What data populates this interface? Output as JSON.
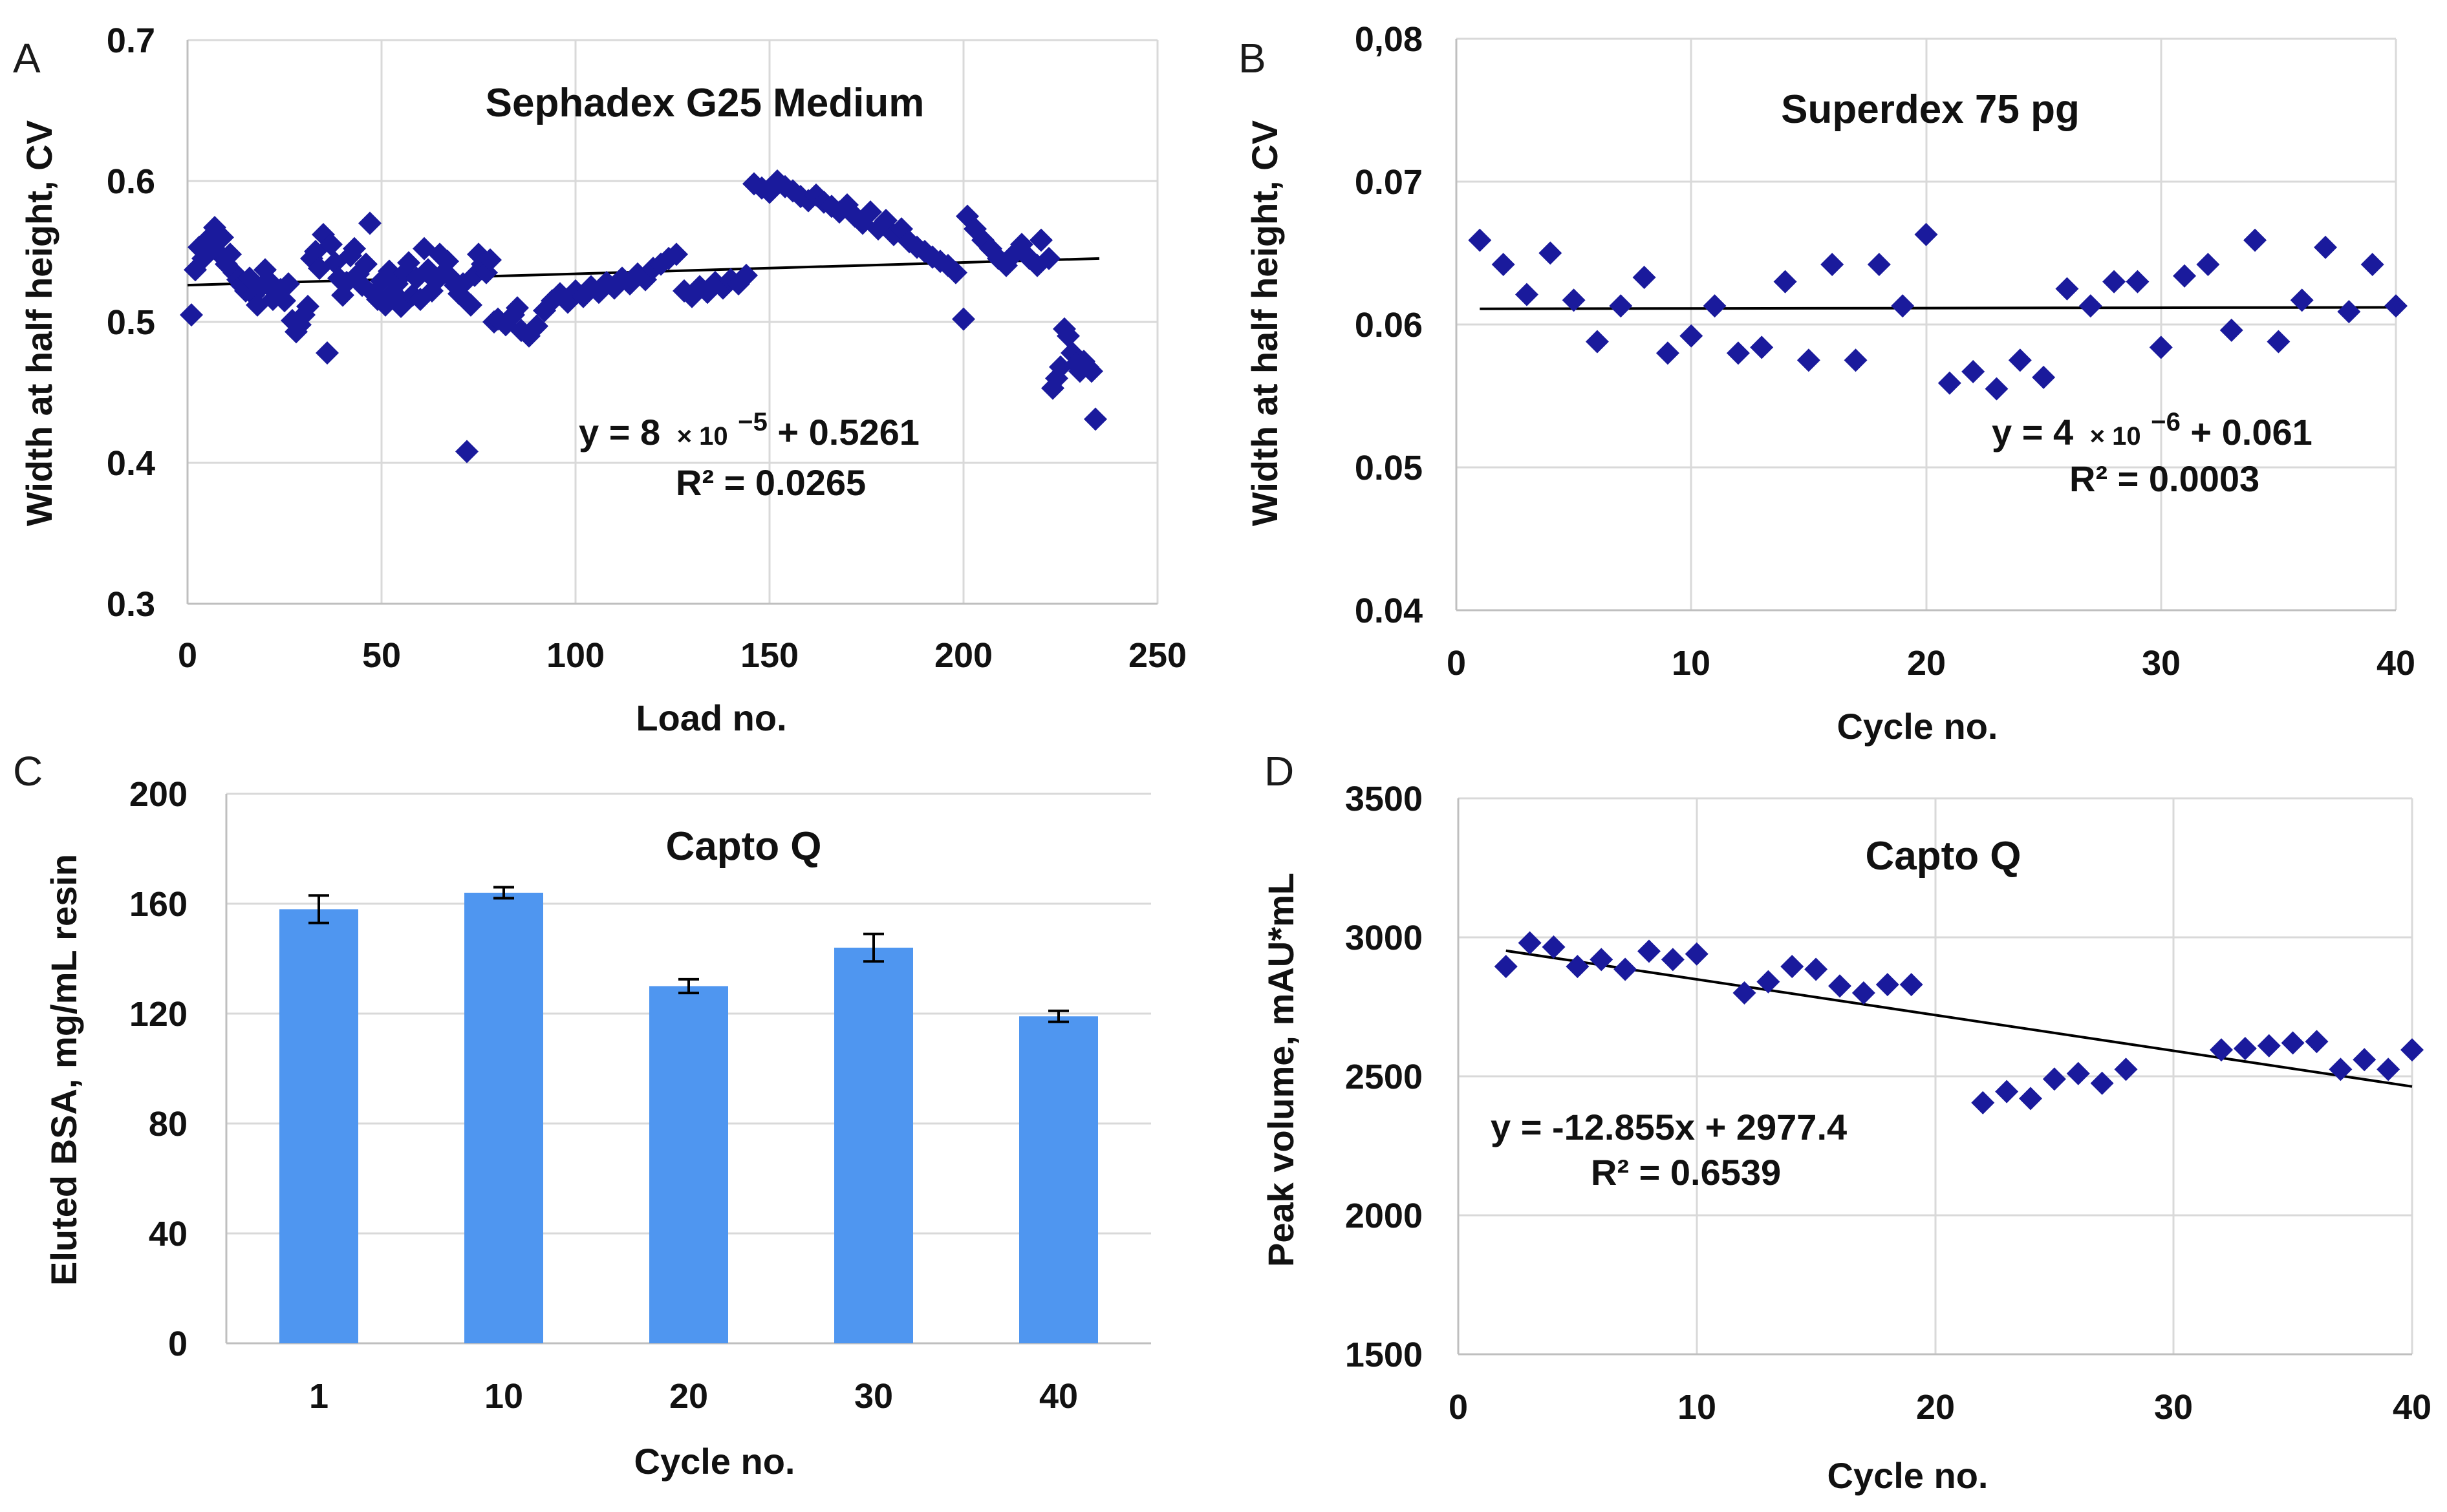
{
  "colors": {
    "marker": "#1a1a9c",
    "bar": "#4f96f0",
    "trend": "#000000",
    "grid": "#d9d9d9"
  },
  "chart_data": [
    {
      "panel": "A",
      "type": "scatter",
      "title": "Sephadex G25 Medium",
      "xlabel": "Load no.",
      "ylabel": "Width at half height, CV",
      "xlim": [
        0,
        250
      ],
      "ylim": [
        0.3,
        0.7
      ],
      "xticks": [
        "0",
        "50",
        "100",
        "150",
        "200",
        "250"
      ],
      "yticks": [
        "0.3",
        "0.4",
        "0.5",
        "0.6",
        "0.7"
      ],
      "trendline": {
        "start": [
          0,
          0.5261
        ],
        "end": [
          235,
          0.545
        ]
      },
      "equation": {
        "prefix": "y =  8",
        "times": "× 10",
        "exp": "−5",
        "suffix": " + 0.5261",
        "r2": "R² = 0.0265"
      },
      "points": [
        [
          1,
          0.505
        ],
        [
          2,
          0.537
        ],
        [
          3,
          0.553
        ],
        [
          4,
          0.545
        ],
        [
          5,
          0.558
        ],
        [
          6,
          0.552
        ],
        [
          7,
          0.567
        ],
        [
          8,
          0.549
        ],
        [
          9,
          0.56
        ],
        [
          10,
          0.541
        ],
        [
          11,
          0.548
        ],
        [
          12,
          0.535
        ],
        [
          13,
          0.53
        ],
        [
          14,
          0.526
        ],
        [
          15,
          0.522
        ],
        [
          16,
          0.531
        ],
        [
          17,
          0.519
        ],
        [
          18,
          0.512
        ],
        [
          19,
          0.525
        ],
        [
          20,
          0.537
        ],
        [
          21,
          0.529
        ],
        [
          22,
          0.516
        ],
        [
          23,
          0.52
        ],
        [
          24,
          0.523
        ],
        [
          25,
          0.515
        ],
        [
          26,
          0.527
        ],
        [
          27,
          0.501
        ],
        [
          28,
          0.493
        ],
        [
          29,
          0.498
        ],
        [
          30,
          0.505
        ],
        [
          31,
          0.511
        ],
        [
          32,
          0.545
        ],
        [
          33,
          0.55
        ],
        [
          34,
          0.538
        ],
        [
          35,
          0.562
        ],
        [
          36,
          0.478
        ],
        [
          37,
          0.555
        ],
        [
          38,
          0.542
        ],
        [
          39,
          0.531
        ],
        [
          40,
          0.519
        ],
        [
          41,
          0.528
        ],
        [
          42,
          0.547
        ],
        [
          43,
          0.552
        ],
        [
          44,
          0.534
        ],
        [
          45,
          0.526
        ],
        [
          46,
          0.541
        ],
        [
          47,
          0.57
        ],
        [
          48,
          0.52
        ],
        [
          49,
          0.516
        ],
        [
          50,
          0.529
        ],
        [
          51,
          0.512
        ],
        [
          52,
          0.536
        ],
        [
          53,
          0.521
        ],
        [
          54,
          0.527
        ],
        [
          55,
          0.511
        ],
        [
          56,
          0.535
        ],
        [
          57,
          0.542
        ],
        [
          58,
          0.519
        ],
        [
          59,
          0.531
        ],
        [
          60,
          0.516
        ],
        [
          61,
          0.552
        ],
        [
          62,
          0.537
        ],
        [
          63,
          0.522
        ],
        [
          64,
          0.529
        ],
        [
          65,
          0.548
        ],
        [
          66,
          0.535
        ],
        [
          67,
          0.543
        ],
        [
          68,
          0.531
        ],
        [
          69,
          0.526
        ],
        [
          70,
          0.52
        ],
        [
          71,
          0.527
        ],
        [
          72,
          0.408
        ],
        [
          73,
          0.512
        ],
        [
          74,
          0.533
        ],
        [
          75,
          0.548
        ],
        [
          76,
          0.541
        ],
        [
          77,
          0.535
        ],
        [
          78,
          0.544
        ],
        [
          79,
          0.5
        ],
        [
          80,
          0.502
        ],
        [
          82,
          0.498
        ],
        [
          84,
          0.505
        ],
        [
          85,
          0.51
        ],
        [
          86,
          0.494
        ],
        [
          88,
          0.49
        ],
        [
          90,
          0.497
        ],
        [
          92,
          0.508
        ],
        [
          94,
          0.515
        ],
        [
          96,
          0.52
        ],
        [
          98,
          0.514
        ],
        [
          100,
          0.522
        ],
        [
          102,
          0.518
        ],
        [
          104,
          0.525
        ],
        [
          106,
          0.521
        ],
        [
          108,
          0.528
        ],
        [
          110,
          0.524
        ],
        [
          112,
          0.531
        ],
        [
          114,
          0.527
        ],
        [
          116,
          0.534
        ],
        [
          118,
          0.53
        ],
        [
          120,
          0.538
        ],
        [
          122,
          0.541
        ],
        [
          124,
          0.545
        ],
        [
          126,
          0.548
        ],
        [
          128,
          0.522
        ],
        [
          130,
          0.518
        ],
        [
          132,
          0.525
        ],
        [
          134,
          0.521
        ],
        [
          136,
          0.528
        ],
        [
          138,
          0.524
        ],
        [
          140,
          0.53
        ],
        [
          142,
          0.527
        ],
        [
          144,
          0.533
        ],
        [
          146,
          0.598
        ],
        [
          148,
          0.595
        ],
        [
          150,
          0.592
        ],
        [
          152,
          0.6
        ],
        [
          154,
          0.596
        ],
        [
          156,
          0.593
        ],
        [
          158,
          0.589
        ],
        [
          160,
          0.586
        ],
        [
          162,
          0.59
        ],
        [
          164,
          0.585
        ],
        [
          166,
          0.582
        ],
        [
          168,
          0.578
        ],
        [
          170,
          0.583
        ],
        [
          172,
          0.575
        ],
        [
          174,
          0.57
        ],
        [
          176,
          0.578
        ],
        [
          178,
          0.566
        ],
        [
          180,
          0.572
        ],
        [
          182,
          0.562
        ],
        [
          184,
          0.566
        ],
        [
          186,
          0.557
        ],
        [
          188,
          0.553
        ],
        [
          190,
          0.55
        ],
        [
          192,
          0.546
        ],
        [
          194,
          0.543
        ],
        [
          196,
          0.54
        ],
        [
          198,
          0.535
        ],
        [
          200,
          0.502
        ],
        [
          201,
          0.575
        ],
        [
          203,
          0.566
        ],
        [
          205,
          0.558
        ],
        [
          207,
          0.552
        ],
        [
          209,
          0.545
        ],
        [
          211,
          0.54
        ],
        [
          213,
          0.548
        ],
        [
          215,
          0.555
        ],
        [
          217,
          0.545
        ],
        [
          219,
          0.54
        ],
        [
          220,
          0.558
        ],
        [
          222,
          0.545
        ],
        [
          223,
          0.453
        ],
        [
          224,
          0.46
        ],
        [
          225,
          0.468
        ],
        [
          226,
          0.495
        ],
        [
          227,
          0.49
        ],
        [
          228,
          0.478
        ],
        [
          229,
          0.47
        ],
        [
          230,
          0.465
        ],
        [
          231,
          0.472
        ],
        [
          232,
          0.468
        ],
        [
          233,
          0.465
        ],
        [
          234,
          0.431
        ]
      ]
    },
    {
      "panel": "B",
      "type": "scatter",
      "title": "Superdex 75 pg",
      "xlabel": "Cycle no.",
      "ylabel": "Width at half height, CV",
      "xlim": [
        0,
        40
      ],
      "ylim": [
        0.04,
        0.08
      ],
      "xticks": [
        "0",
        "10",
        "20",
        "30",
        "40"
      ],
      "yticks": [
        "0.04",
        "0.05",
        "0.06",
        "0.07",
        "0,08"
      ],
      "trendline": {
        "start": [
          1,
          0.0611
        ],
        "end": [
          40,
          0.0612
        ]
      },
      "equation": {
        "prefix": "y = 4",
        "times": "× 10",
        "exp": "−6",
        "suffix": " + 0.061",
        "r2": "R² = 0.0003"
      },
      "points": [
        [
          1,
          0.0659
        ],
        [
          2,
          0.0642
        ],
        [
          3,
          0.0621
        ],
        [
          4,
          0.065
        ],
        [
          5,
          0.0617
        ],
        [
          6,
          0.0588
        ],
        [
          7,
          0.0613
        ],
        [
          8,
          0.0633
        ],
        [
          9,
          0.058
        ],
        [
          10,
          0.0592
        ],
        [
          11,
          0.0613
        ],
        [
          12,
          0.058
        ],
        [
          13,
          0.0584
        ],
        [
          14,
          0.063
        ],
        [
          15,
          0.0575
        ],
        [
          16,
          0.0642
        ],
        [
          17,
          0.0575
        ],
        [
          18,
          0.0642
        ],
        [
          19,
          0.0613
        ],
        [
          20,
          0.0663
        ],
        [
          21,
          0.0559
        ],
        [
          22,
          0.0567
        ],
        [
          23,
          0.0555
        ],
        [
          24,
          0.0575
        ],
        [
          25,
          0.0563
        ],
        [
          26,
          0.0625
        ],
        [
          27,
          0.0613
        ],
        [
          28,
          0.063
        ],
        [
          29,
          0.063
        ],
        [
          30,
          0.0584
        ],
        [
          31,
          0.0634
        ],
        [
          32,
          0.0642
        ],
        [
          33,
          0.0596
        ],
        [
          34,
          0.0659
        ],
        [
          35,
          0.0588
        ],
        [
          36,
          0.0617
        ],
        [
          37,
          0.0654
        ],
        [
          38,
          0.0609
        ],
        [
          39,
          0.0642
        ],
        [
          40,
          0.0613
        ]
      ]
    },
    {
      "panel": "C",
      "type": "bar",
      "title": "Capto Q",
      "xlabel": "Cycle no.",
      "ylabel": "Eluted BSA, mg/mL resin",
      "ylim": [
        0,
        200
      ],
      "categories": [
        "1",
        "10",
        "20",
        "30",
        "40"
      ],
      "values": [
        158,
        164,
        130,
        144,
        119
      ],
      "errors": [
        5,
        2,
        2.5,
        5,
        2
      ],
      "yticks": [
        "0",
        "40",
        "80",
        "120",
        "160",
        "200"
      ]
    },
    {
      "panel": "D",
      "type": "scatter",
      "title": "Capto Q",
      "xlabel": "Cycle no.",
      "ylabel": "Peak volume, mAU*mL",
      "xlim": [
        0,
        40
      ],
      "ylim": [
        1500,
        3500
      ],
      "xticks": [
        "0",
        "10",
        "20",
        "30",
        "40"
      ],
      "yticks": [
        "1500",
        "2000",
        "2500",
        "3000",
        "3500"
      ],
      "trendline": {
        "start": [
          2,
          2951.7
        ],
        "end": [
          40,
          2463.2
        ]
      },
      "equation": {
        "line1": "y = -12.855x + 2977.4",
        "r2": "R² = 0.6539"
      },
      "points": [
        [
          2,
          2895
        ],
        [
          3,
          2980
        ],
        [
          4,
          2965
        ],
        [
          5,
          2895
        ],
        [
          6,
          2920
        ],
        [
          7,
          2885
        ],
        [
          8,
          2950
        ],
        [
          9,
          2920
        ],
        [
          10,
          2940
        ],
        [
          12,
          2800
        ],
        [
          13,
          2840
        ],
        [
          14,
          2895
        ],
        [
          15,
          2885
        ],
        [
          16,
          2825
        ],
        [
          17,
          2800
        ],
        [
          18,
          2830
        ],
        [
          19,
          2830
        ],
        [
          22,
          2405
        ],
        [
          23,
          2445
        ],
        [
          24,
          2420
        ],
        [
          25,
          2490
        ],
        [
          26,
          2510
        ],
        [
          27,
          2475
        ],
        [
          28,
          2525
        ],
        [
          32,
          2595
        ],
        [
          33,
          2600
        ],
        [
          34,
          2610
        ],
        [
          35,
          2620
        ],
        [
          36,
          2625
        ],
        [
          37,
          2525
        ],
        [
          38,
          2560
        ],
        [
          39,
          2525
        ],
        [
          40,
          2595
        ]
      ]
    }
  ]
}
